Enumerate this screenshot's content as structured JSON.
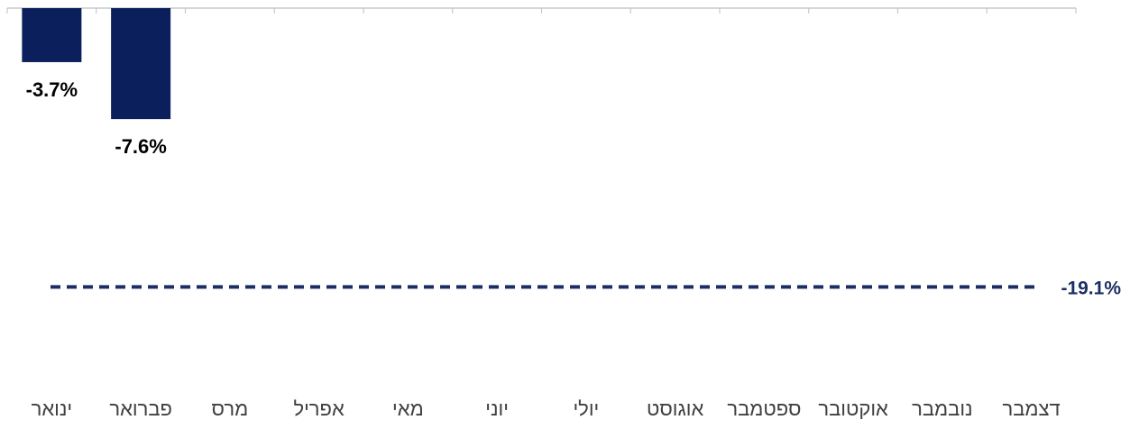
{
  "chart_data": {
    "type": "bar",
    "categories": [
      "ינואר",
      "פברואר",
      "מרס",
      "אפריל",
      "מאי",
      "יוני",
      "יולי",
      "אוגוסט",
      "ספטמבר",
      "אוקטובר",
      "נובמבר",
      "דצמבר"
    ],
    "series": [
      {
        "values": [
          -3.7,
          -7.6,
          null,
          null,
          null,
          null,
          null,
          null,
          null,
          null,
          null,
          null
        ],
        "color": "#0b1f5c"
      }
    ],
    "data_labels": [
      "-3.7%",
      "-7.6%"
    ],
    "reference_line": {
      "value": -19.1,
      "label": "-19.1%",
      "style": "dashed",
      "color": "#1b2f63"
    },
    "title": "",
    "xlabel": "",
    "ylabel": "",
    "ylim": [
      -28,
      0
    ],
    "grid": false,
    "legend": "none",
    "axis_color": "#c8c8c8",
    "label_color": "#404040"
  }
}
